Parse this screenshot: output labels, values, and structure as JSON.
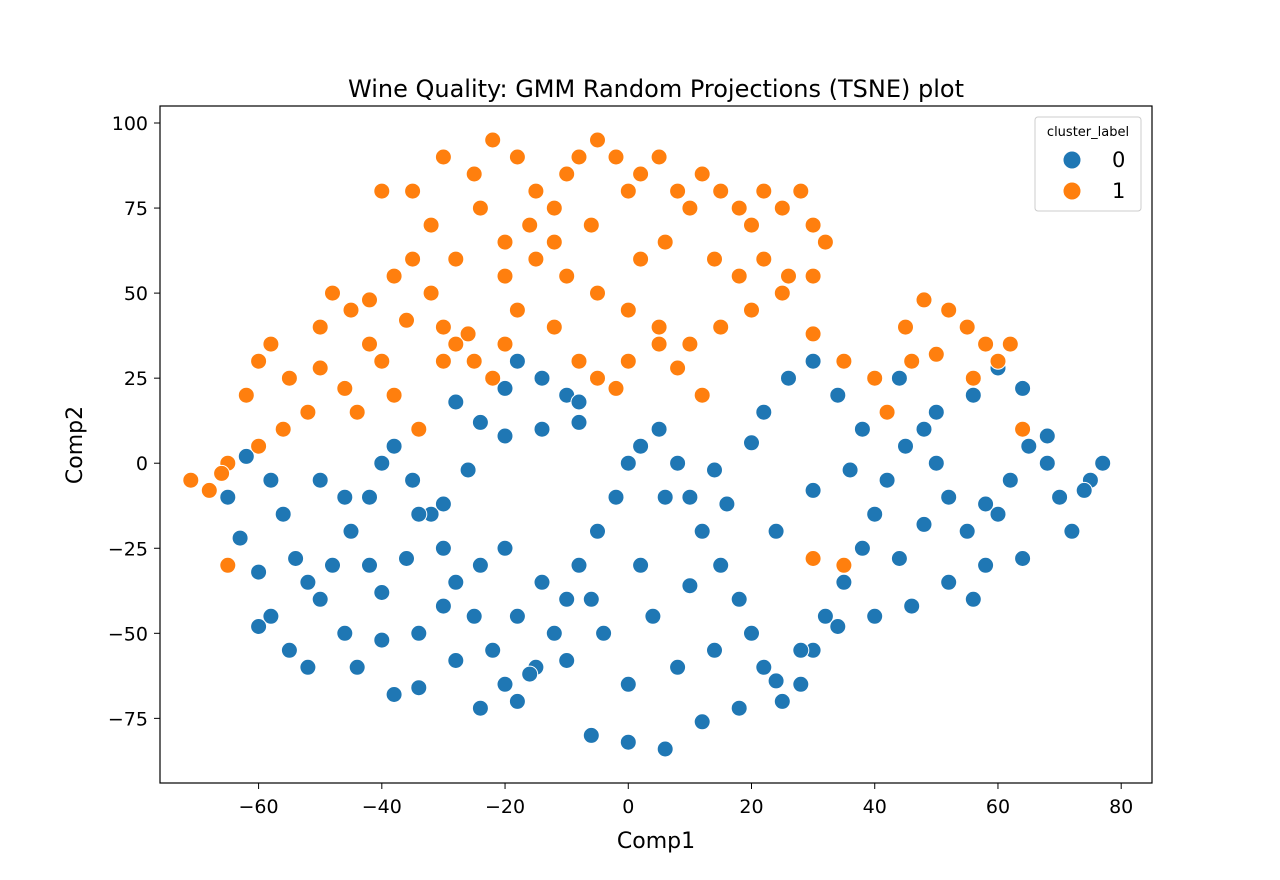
{
  "chart_data": {
    "type": "scatter",
    "title": "Wine Quality: GMM Random Projections (TSNE) plot",
    "xlabel": "Comp1",
    "ylabel": "Comp2",
    "xlim": [
      -76,
      85
    ],
    "ylim": [
      -94,
      105
    ],
    "xticks": [
      -60,
      -40,
      -20,
      0,
      20,
      40,
      60,
      80
    ],
    "yticks": [
      -75,
      -50,
      -25,
      0,
      25,
      50,
      75,
      100
    ],
    "grid": false,
    "legend": {
      "title": "cluster_label",
      "placement": "top-right",
      "entries": [
        {
          "label": "0",
          "color": "#1f77b4"
        },
        {
          "label": "1",
          "color": "#ff7f0e"
        }
      ]
    },
    "series": [
      {
        "name": "0",
        "color": "#1f77b4",
        "points": [
          [
            -65,
            -10
          ],
          [
            -63,
            -22
          ],
          [
            -60,
            -32
          ],
          [
            -58,
            -45
          ],
          [
            -55,
            -55
          ],
          [
            -52,
            -60
          ],
          [
            -50,
            -40
          ],
          [
            -48,
            -30
          ],
          [
            -45,
            -20
          ],
          [
            -42,
            -10
          ],
          [
            -40,
            0
          ],
          [
            -38,
            5
          ],
          [
            -35,
            -5
          ],
          [
            -32,
            -15
          ],
          [
            -30,
            -25
          ],
          [
            -28,
            -35
          ],
          [
            -25,
            -45
          ],
          [
            -22,
            -55
          ],
          [
            -20,
            -65
          ],
          [
            -18,
            -70
          ],
          [
            -15,
            -60
          ],
          [
            -12,
            -50
          ],
          [
            -10,
            -40
          ],
          [
            -8,
            -30
          ],
          [
            -5,
            -20
          ],
          [
            -2,
            -10
          ],
          [
            0,
            0
          ],
          [
            2,
            5
          ],
          [
            5,
            10
          ],
          [
            8,
            0
          ],
          [
            10,
            -10
          ],
          [
            12,
            -20
          ],
          [
            15,
            -30
          ],
          [
            18,
            -40
          ],
          [
            20,
            -50
          ],
          [
            22,
            -60
          ],
          [
            25,
            -70
          ],
          [
            28,
            -65
          ],
          [
            30,
            -55
          ],
          [
            32,
            -45
          ],
          [
            35,
            -35
          ],
          [
            38,
            -25
          ],
          [
            40,
            -15
          ],
          [
            42,
            -5
          ],
          [
            45,
            5
          ],
          [
            48,
            10
          ],
          [
            50,
            0
          ],
          [
            52,
            -10
          ],
          [
            55,
            -20
          ],
          [
            58,
            -30
          ],
          [
            60,
            -15
          ],
          [
            62,
            -5
          ],
          [
            65,
            5
          ],
          [
            68,
            0
          ],
          [
            70,
            -10
          ],
          [
            72,
            -20
          ],
          [
            75,
            -5
          ],
          [
            77,
            0
          ],
          [
            -56,
            -15
          ],
          [
            -50,
            -5
          ],
          [
            -44,
            -60
          ],
          [
            -38,
            -68
          ],
          [
            -34,
            -50
          ],
          [
            -28,
            -58
          ],
          [
            -24,
            -72
          ],
          [
            -16,
            -62
          ],
          [
            -6,
            -80
          ],
          [
            0,
            -82
          ],
          [
            6,
            -84
          ],
          [
            12,
            -76
          ],
          [
            18,
            -72
          ],
          [
            24,
            -64
          ],
          [
            28,
            -55
          ],
          [
            34,
            -48
          ],
          [
            40,
            -45
          ],
          [
            46,
            -42
          ],
          [
            52,
            -35
          ],
          [
            56,
            -40
          ],
          [
            -46,
            -50
          ],
          [
            -40,
            -38
          ],
          [
            -36,
            -28
          ],
          [
            -30,
            -12
          ],
          [
            -26,
            -2
          ],
          [
            -20,
            8
          ],
          [
            -14,
            10
          ],
          [
            -8,
            12
          ],
          [
            4,
            -45
          ],
          [
            8,
            -60
          ],
          [
            14,
            -55
          ],
          [
            0,
            -65
          ],
          [
            -4,
            -50
          ],
          [
            -10,
            -58
          ],
          [
            -18,
            -45
          ],
          [
            -24,
            -30
          ],
          [
            -30,
            -42
          ],
          [
            -34,
            -15
          ],
          [
            22,
            15
          ],
          [
            26,
            25
          ],
          [
            30,
            30
          ],
          [
            34,
            20
          ],
          [
            38,
            10
          ],
          [
            44,
            25
          ],
          [
            50,
            15
          ],
          [
            56,
            20
          ],
          [
            60,
            28
          ],
          [
            64,
            22
          ],
          [
            68,
            8
          ],
          [
            74,
            -8
          ],
          [
            64,
            -28
          ],
          [
            58,
            -12
          ],
          [
            -52,
            -35
          ],
          [
            -46,
            -10
          ],
          [
            -40,
            -52
          ],
          [
            -34,
            -66
          ],
          [
            -20,
            -25
          ],
          [
            -14,
            -35
          ],
          [
            -6,
            -40
          ],
          [
            2,
            -30
          ],
          [
            10,
            -36
          ],
          [
            16,
            -12
          ],
          [
            24,
            -20
          ],
          [
            30,
            -8
          ],
          [
            36,
            -2
          ],
          [
            44,
            -28
          ],
          [
            48,
            -18
          ],
          [
            -62,
            2
          ],
          [
            -58,
            -5
          ],
          [
            -54,
            -28
          ],
          [
            -60,
            -48
          ],
          [
            -42,
            -30
          ],
          [
            -18,
            30
          ],
          [
            -14,
            25
          ],
          [
            -10,
            20
          ],
          [
            -20,
            22
          ],
          [
            -8,
            18
          ],
          [
            -28,
            18
          ],
          [
            -24,
            12
          ],
          [
            6,
            -10
          ],
          [
            14,
            -2
          ],
          [
            20,
            6
          ]
        ]
      },
      {
        "name": "1",
        "color": "#ff7f0e",
        "points": [
          [
            -71,
            -5
          ],
          [
            -68,
            -8
          ],
          [
            -65,
            0
          ],
          [
            -62,
            20
          ],
          [
            -60,
            30
          ],
          [
            -58,
            35
          ],
          [
            -55,
            25
          ],
          [
            -52,
            15
          ],
          [
            -50,
            40
          ],
          [
            -48,
            50
          ],
          [
            -45,
            45
          ],
          [
            -42,
            35
          ],
          [
            -40,
            30
          ],
          [
            -38,
            55
          ],
          [
            -35,
            60
          ],
          [
            -32,
            50
          ],
          [
            -30,
            40
          ],
          [
            -28,
            35
          ],
          [
            -25,
            30
          ],
          [
            -22,
            25
          ],
          [
            -20,
            35
          ],
          [
            -35,
            80
          ],
          [
            -30,
            90
          ],
          [
            -25,
            85
          ],
          [
            -22,
            95
          ],
          [
            -18,
            90
          ],
          [
            -15,
            80
          ],
          [
            -12,
            75
          ],
          [
            -10,
            85
          ],
          [
            -8,
            90
          ],
          [
            -5,
            95
          ],
          [
            -2,
            90
          ],
          [
            0,
            80
          ],
          [
            2,
            85
          ],
          [
            5,
            90
          ],
          [
            8,
            80
          ],
          [
            10,
            75
          ],
          [
            12,
            85
          ],
          [
            15,
            80
          ],
          [
            18,
            75
          ],
          [
            20,
            70
          ],
          [
            22,
            80
          ],
          [
            25,
            75
          ],
          [
            28,
            80
          ],
          [
            30,
            70
          ],
          [
            32,
            65
          ],
          [
            -20,
            65
          ],
          [
            -15,
            60
          ],
          [
            -10,
            55
          ],
          [
            -5,
            50
          ],
          [
            0,
            45
          ],
          [
            5,
            40
          ],
          [
            10,
            35
          ],
          [
            15,
            40
          ],
          [
            20,
            45
          ],
          [
            25,
            50
          ],
          [
            30,
            55
          ],
          [
            -5,
            25
          ],
          [
            0,
            30
          ],
          [
            5,
            35
          ],
          [
            -18,
            45
          ],
          [
            -12,
            40
          ],
          [
            -8,
            30
          ],
          [
            -2,
            22
          ],
          [
            8,
            28
          ],
          [
            12,
            20
          ],
          [
            30,
            38
          ],
          [
            35,
            30
          ],
          [
            40,
            25
          ],
          [
            45,
            40
          ],
          [
            48,
            48
          ],
          [
            52,
            45
          ],
          [
            55,
            40
          ],
          [
            58,
            35
          ],
          [
            60,
            30
          ],
          [
            62,
            35
          ],
          [
            64,
            10
          ],
          [
            30,
            -28
          ],
          [
            35,
            -30
          ],
          [
            -65,
            -30
          ],
          [
            -40,
            80
          ],
          [
            -32,
            70
          ],
          [
            -28,
            60
          ],
          [
            -24,
            75
          ],
          [
            -20,
            55
          ],
          [
            -16,
            70
          ],
          [
            -12,
            65
          ],
          [
            -6,
            70
          ],
          [
            2,
            60
          ],
          [
            6,
            65
          ],
          [
            14,
            60
          ],
          [
            18,
            55
          ],
          [
            22,
            60
          ],
          [
            26,
            55
          ],
          [
            -44,
            15
          ],
          [
            -38,
            20
          ],
          [
            -34,
            10
          ],
          [
            -46,
            22
          ],
          [
            -56,
            10
          ],
          [
            -60,
            5
          ],
          [
            -66,
            -3
          ],
          [
            -50,
            28
          ],
          [
            -42,
            48
          ],
          [
            -36,
            42
          ],
          [
            -30,
            30
          ],
          [
            -26,
            38
          ],
          [
            42,
            15
          ],
          [
            46,
            30
          ],
          [
            50,
            32
          ],
          [
            56,
            25
          ]
        ]
      }
    ]
  }
}
